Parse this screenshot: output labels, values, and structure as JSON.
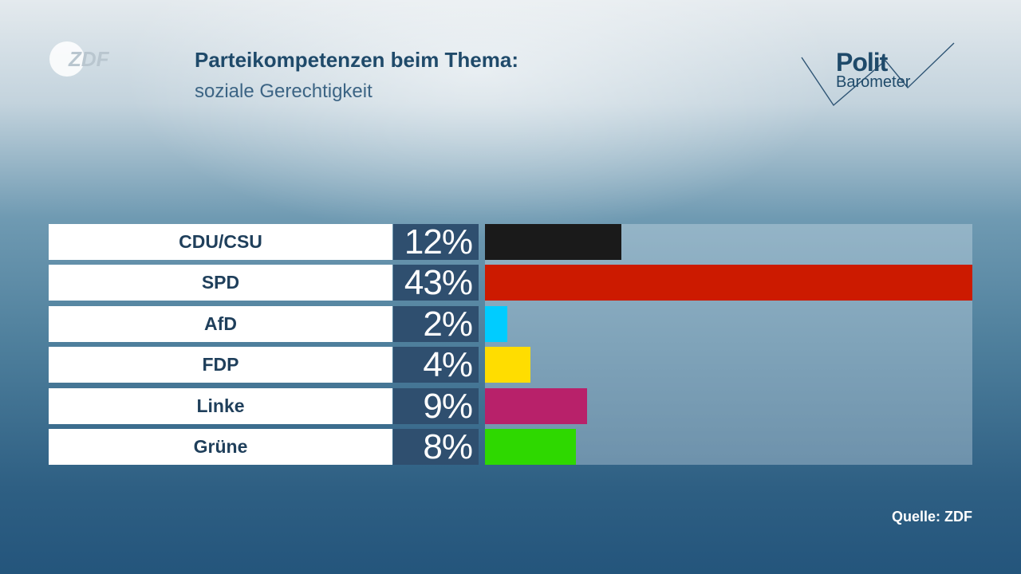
{
  "header": {
    "title": "Parteikompetenzen beim Thema:",
    "subtitle": "soziale Gerechtigkeit"
  },
  "logos": {
    "zdf": "ZDF",
    "polit_line1": "Polit",
    "polit_line2": "Barometer"
  },
  "source": "Quelle: ZDF",
  "chart_data": {
    "type": "bar",
    "orientation": "horizontal",
    "title": "Parteikompetenzen beim Thema: soziale Gerechtigkeit",
    "categories": [
      "CDU/CSU",
      "SPD",
      "AfD",
      "FDP",
      "Linke",
      "Grüne"
    ],
    "values": [
      12,
      43,
      2,
      4,
      9,
      8
    ],
    "value_labels": [
      "12%",
      "43%",
      "2%",
      "4%",
      "9%",
      "8%"
    ],
    "colors": [
      "#1a1a1a",
      "#cc1a00",
      "#00ccff",
      "#ffdd00",
      "#b8216a",
      "#2ed800"
    ],
    "unit": "%",
    "xlim": [
      0,
      43
    ]
  }
}
